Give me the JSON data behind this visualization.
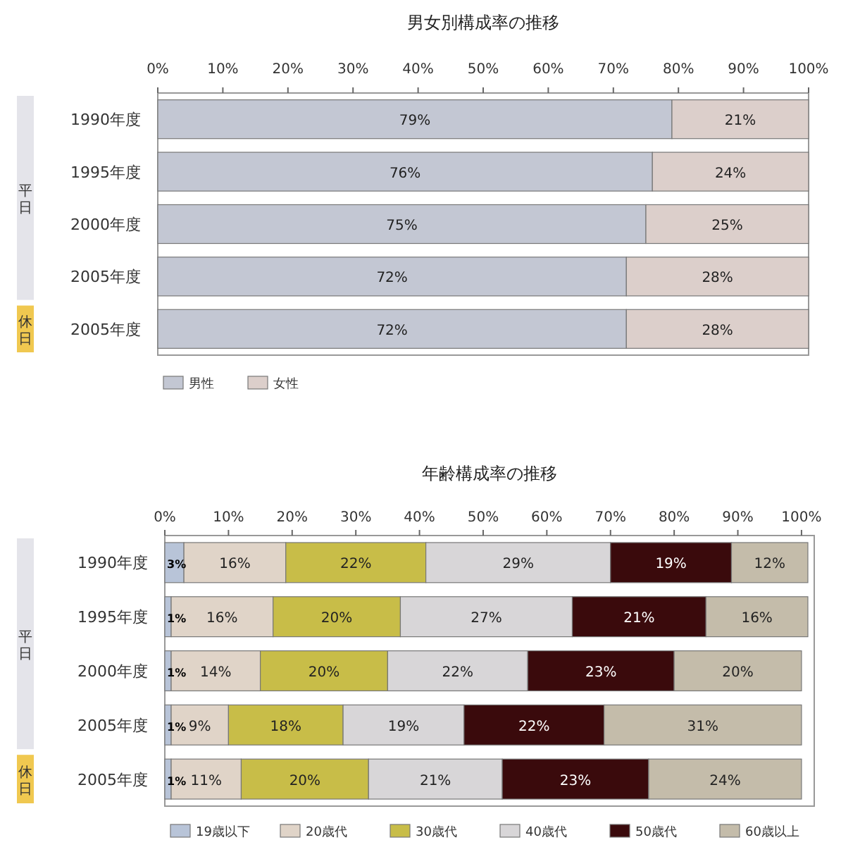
{
  "chart_data": [
    {
      "type": "bar",
      "orientation": "horizontal",
      "stacked": true,
      "title": "男女別構成率の推移",
      "categories": [
        "1990年度",
        "1995年度",
        "2000年度",
        "2005年度",
        "2005年度"
      ],
      "series": [
        {
          "name": "男性",
          "color": "#c3c7d3",
          "values": [
            79,
            76,
            75,
            72,
            72
          ],
          "value_labels": [
            "79%",
            "76%",
            "75%",
            "72%",
            "72%"
          ]
        },
        {
          "name": "女性",
          "color": "#dccfcb",
          "values": [
            21,
            24,
            25,
            28,
            28
          ],
          "value_labels": [
            "21%",
            "24%",
            "25%",
            "28%",
            "28%"
          ]
        }
      ],
      "xlim": [
        0,
        100
      ],
      "xticks": [
        {
          "value": 0,
          "label": "0%"
        },
        {
          "value": 10,
          "label": "10%"
        },
        {
          "value": 20,
          "label": "20%"
        },
        {
          "value": 30,
          "label": "30%"
        },
        {
          "value": 40,
          "label": "40%"
        },
        {
          "value": 50,
          "label": "50%"
        },
        {
          "value": 60,
          "label": "60%"
        },
        {
          "value": 70,
          "label": "70%"
        },
        {
          "value": 80,
          "label": "80%"
        },
        {
          "value": 90,
          "label": "90%"
        },
        {
          "value": 100,
          "label": "100%"
        }
      ],
      "legend": "bottom left",
      "annotations": [
        "平日",
        "休日"
      ]
    },
    {
      "type": "bar",
      "orientation": "horizontal",
      "stacked": true,
      "title": "年齢構成率の推移",
      "categories": [
        "1990年度",
        "1995年度",
        "2000年度",
        "2005年度",
        "2005年度"
      ],
      "series": [
        {
          "name": "19歳以下",
          "color": "#b8c4d8",
          "values": [
            3,
            1,
            1,
            1,
            1
          ],
          "value_labels": [
            "3%",
            "1%",
            "1%",
            "1%",
            "1%"
          ]
        },
        {
          "name": "20歳代",
          "color": "#e0d4c8",
          "values": [
            16,
            16,
            14,
            9,
            11
          ],
          "value_labels": [
            "16%",
            "16%",
            "14%",
            "9%",
            "11%"
          ]
        },
        {
          "name": "30歳代",
          "color": "#c8bd48",
          "values": [
            22,
            20,
            20,
            18,
            20
          ],
          "value_labels": [
            "22%",
            "20%",
            "20%",
            "18%",
            "20%"
          ]
        },
        {
          "name": "40歳代",
          "color": "#d8d6d8",
          "values": [
            29,
            27,
            22,
            19,
            21
          ],
          "value_labels": [
            "29%",
            "27%",
            "22%",
            "19%",
            "21%"
          ]
        },
        {
          "name": "50歳代",
          "color": "#3a0a0c",
          "values": [
            19,
            21,
            23,
            22,
            23
          ],
          "value_labels": [
            "19%",
            "21%",
            "23%",
            "22%",
            "23%"
          ]
        },
        {
          "name": "60歳以上",
          "color": "#c4bcaa",
          "values": [
            12,
            16,
            20,
            31,
            24
          ],
          "value_labels": [
            "12%",
            "16%",
            "20%",
            "31%",
            "24%"
          ]
        }
      ],
      "xlim": [
        0,
        102
      ],
      "xticks": [
        {
          "value": 0,
          "label": "0%"
        },
        {
          "value": 10,
          "label": "10%"
        },
        {
          "value": 20,
          "label": "20%"
        },
        {
          "value": 30,
          "label": "30%"
        },
        {
          "value": 40,
          "label": "40%"
        },
        {
          "value": 50,
          "label": "50%"
        },
        {
          "value": 60,
          "label": "60%"
        },
        {
          "value": 70,
          "label": "70%"
        },
        {
          "value": 80,
          "label": "80%"
        },
        {
          "value": 90,
          "label": "90%"
        },
        {
          "value": 100,
          "label": "100%"
        }
      ],
      "legend": "bottom left",
      "annotations": [
        "平日",
        "休日"
      ]
    }
  ]
}
